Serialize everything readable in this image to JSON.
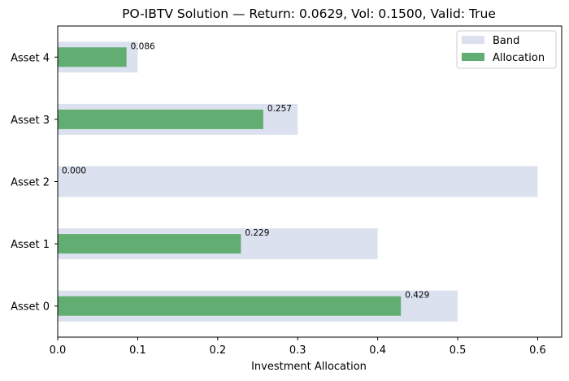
{
  "chart_data": {
    "type": "bar",
    "orientation": "horizontal",
    "title": "PO-IBTV Solution — Return: 0.0629, Vol: 0.1500, Valid: True",
    "xlabel": "Investment Allocation",
    "ylabel": "",
    "xlim": [
      0,
      0.63
    ],
    "xticks": [
      "0.0",
      "0.1",
      "0.2",
      "0.3",
      "0.4",
      "0.5",
      "0.6"
    ],
    "xtick_values": [
      0,
      0.1,
      0.2,
      0.3,
      0.4,
      0.5,
      0.6
    ],
    "categories": [
      "Asset 0",
      "Asset 1",
      "Asset 2",
      "Asset 3",
      "Asset 4"
    ],
    "series": [
      {
        "name": "Band",
        "color": "#dbe1ee",
        "values": [
          0.5,
          0.4,
          0.6,
          0.3,
          0.1
        ]
      },
      {
        "name": "Allocation",
        "color": "#62ad71",
        "values": [
          0.429,
          0.229,
          0.0,
          0.257,
          0.086
        ]
      }
    ],
    "data_labels": [
      "0.429",
      "0.229",
      "0.000",
      "0.257",
      "0.086"
    ],
    "legend": {
      "position": "top-right",
      "entries": [
        "Band",
        "Allocation"
      ]
    },
    "grid": false
  }
}
